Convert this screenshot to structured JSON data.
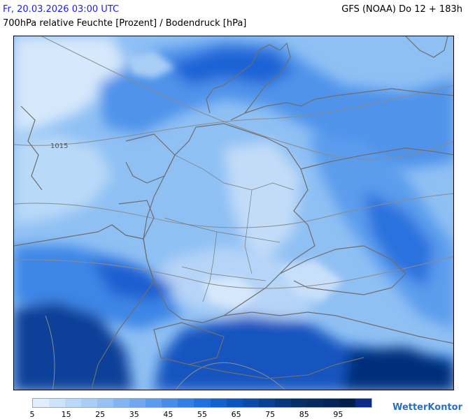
{
  "header": {
    "valid_time": "Fr, 20.03.2026 03:00 UTC",
    "model_run": "GFS (NOAA) Do 12 + 183h",
    "subtitle": "700hPa relative Feuchte [Prozent] / Bodendruck [hPa]"
  },
  "map": {
    "isobar_label": "1015",
    "colors": {
      "very_dry": "#d6e8fb",
      "dry": "#a9cff6",
      "mid": "#7ab4f2",
      "moist": "#4a90e8",
      "wet": "#1a63d6",
      "very_wet": "#0a45a8",
      "saturated": "#062f7a",
      "border": "#777777",
      "isobar": "#8c8c8c"
    }
  },
  "legend": {
    "colors": [
      "#e3eefc",
      "#cfe3fa",
      "#bcd8f8",
      "#a9cdf6",
      "#96c1f4",
      "#83b5f2",
      "#6fa8f0",
      "#5b9aed",
      "#478ce9",
      "#337ee5",
      "#1f70e0",
      "#1262d2",
      "#0b55be",
      "#0a4ba8",
      "#084192",
      "#07387e",
      "#062f6a",
      "#052a5e",
      "#04245a",
      "#031e4a",
      "#0a2a86"
    ],
    "ticks": [
      "5",
      "15",
      "25",
      "35",
      "45",
      "55",
      "65",
      "75",
      "85",
      "95"
    ]
  },
  "branding": {
    "name": "WetterKontor"
  }
}
